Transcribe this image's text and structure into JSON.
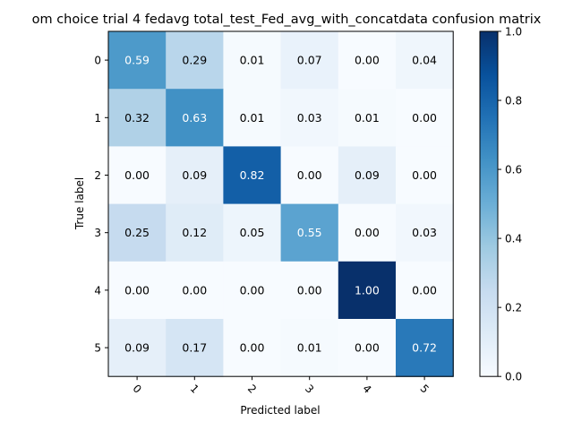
{
  "chart_data": {
    "type": "heatmap",
    "title": "om choice trial 4 fedavg total_test_Fed_avg_with_concatdata confusion matrix",
    "xlabel": "Predicted label",
    "ylabel": "True label",
    "x_categories": [
      "0",
      "1",
      "2",
      "3",
      "4",
      "5"
    ],
    "y_categories": [
      "0",
      "1",
      "2",
      "3",
      "4",
      "5"
    ],
    "values": [
      [
        0.59,
        0.29,
        0.01,
        0.07,
        0.0,
        0.04
      ],
      [
        0.32,
        0.63,
        0.01,
        0.03,
        0.01,
        0.0
      ],
      [
        0.0,
        0.09,
        0.82,
        0.0,
        0.09,
        0.0
      ],
      [
        0.25,
        0.12,
        0.05,
        0.55,
        0.0,
        0.03
      ],
      [
        0.0,
        0.0,
        0.0,
        0.0,
        1.0,
        0.0
      ],
      [
        0.09,
        0.17,
        0.0,
        0.01,
        0.0,
        0.72
      ]
    ],
    "value_format": "0.00",
    "colormap": "Blues",
    "colormap_stops": [
      "#f7fbff",
      "#deebf7",
      "#c6dbef",
      "#9ecae1",
      "#6baed6",
      "#4292c6",
      "#2171b5",
      "#08519c",
      "#08306b"
    ],
    "colorbar": {
      "range": [
        0.0,
        1.0
      ],
      "ticks": [
        0.0,
        0.2,
        0.4,
        0.6,
        0.8,
        1.0
      ],
      "tick_labels": [
        "0.0",
        "0.2",
        "0.4",
        "0.6",
        "0.8",
        "1.0"
      ]
    },
    "text_color_dark": "#000000",
    "text_color_light": "#ffffff",
    "text_threshold": 0.5,
    "x_tick_rotation": "45 degrees",
    "grid": false
  }
}
